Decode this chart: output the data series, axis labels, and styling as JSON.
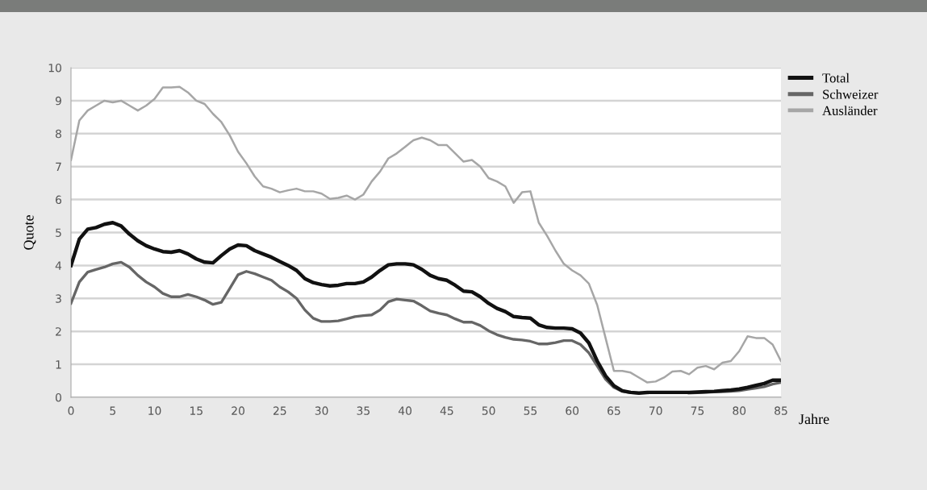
{
  "chart_data": {
    "type": "line",
    "xlabel": "Jahre",
    "ylabel": "Quote",
    "x": [
      0,
      1,
      2,
      3,
      4,
      5,
      6,
      7,
      8,
      9,
      10,
      11,
      12,
      13,
      14,
      15,
      16,
      17,
      18,
      19,
      20,
      21,
      22,
      23,
      24,
      25,
      26,
      27,
      28,
      29,
      30,
      31,
      32,
      33,
      34,
      35,
      36,
      37,
      38,
      39,
      40,
      41,
      42,
      43,
      44,
      45,
      46,
      47,
      48,
      49,
      50,
      51,
      52,
      53,
      54,
      55,
      56,
      57,
      58,
      59,
      60,
      61,
      62,
      63,
      64,
      65,
      66,
      67,
      68,
      69,
      70,
      71,
      72,
      73,
      74,
      75,
      76,
      77,
      78,
      79,
      80,
      81,
      82,
      83,
      84,
      85
    ],
    "series": [
      {
        "name": "Total",
        "color": "#111111",
        "values": [
          4.0,
          4.8,
          5.1,
          5.15,
          5.25,
          5.3,
          5.2,
          4.95,
          4.75,
          4.6,
          4.5,
          4.42,
          4.4,
          4.45,
          4.35,
          4.2,
          4.1,
          4.08,
          4.3,
          4.5,
          4.62,
          4.6,
          4.45,
          4.35,
          4.25,
          4.12,
          4.0,
          3.85,
          3.6,
          3.48,
          3.42,
          3.38,
          3.4,
          3.45,
          3.45,
          3.5,
          3.65,
          3.85,
          4.02,
          4.05,
          4.05,
          4.02,
          3.88,
          3.7,
          3.6,
          3.55,
          3.4,
          3.22,
          3.2,
          3.05,
          2.85,
          2.7,
          2.6,
          2.45,
          2.42,
          2.4,
          2.2,
          2.12,
          2.1,
          2.1,
          2.08,
          1.95,
          1.65,
          1.1,
          0.65,
          0.35,
          0.2,
          0.15,
          0.13,
          0.15,
          0.15,
          0.15,
          0.15,
          0.15,
          0.15,
          0.16,
          0.17,
          0.18,
          0.2,
          0.22,
          0.25,
          0.3,
          0.36,
          0.42,
          0.52,
          0.52
        ]
      },
      {
        "name": "Schweizer",
        "color": "#666666",
        "values": [
          2.85,
          3.5,
          3.8,
          3.88,
          3.95,
          4.05,
          4.1,
          3.95,
          3.7,
          3.5,
          3.35,
          3.15,
          3.05,
          3.05,
          3.12,
          3.05,
          2.95,
          2.82,
          2.88,
          3.3,
          3.72,
          3.82,
          3.75,
          3.65,
          3.55,
          3.35,
          3.2,
          3.0,
          2.65,
          2.4,
          2.3,
          2.3,
          2.32,
          2.38,
          2.45,
          2.48,
          2.5,
          2.65,
          2.9,
          2.98,
          2.95,
          2.92,
          2.78,
          2.62,
          2.55,
          2.5,
          2.38,
          2.28,
          2.28,
          2.18,
          2.02,
          1.9,
          1.82,
          1.76,
          1.74,
          1.7,
          1.62,
          1.62,
          1.66,
          1.72,
          1.72,
          1.6,
          1.35,
          0.95,
          0.55,
          0.3,
          0.18,
          0.14,
          0.13,
          0.13,
          null,
          null,
          null,
          null,
          0.13,
          0.14,
          0.15,
          0.16,
          0.17,
          0.18,
          0.2,
          0.24,
          0.28,
          0.32,
          0.4,
          0.45
        ]
      },
      {
        "name": "Ausländer",
        "color": "#a6a6a6",
        "values": [
          7.2,
          8.4,
          8.7,
          8.85,
          9.0,
          8.95,
          9.0,
          8.85,
          8.7,
          8.85,
          9.05,
          9.4,
          9.4,
          9.42,
          9.25,
          9.0,
          8.9,
          8.6,
          8.35,
          7.95,
          7.45,
          7.1,
          6.7,
          6.4,
          6.33,
          6.22,
          6.28,
          6.33,
          6.25,
          6.25,
          6.18,
          6.02,
          6.05,
          6.12,
          6.0,
          6.15,
          6.55,
          6.85,
          7.25,
          7.4,
          7.6,
          7.8,
          7.88,
          7.8,
          7.65,
          7.65,
          7.4,
          7.15,
          7.2,
          7.0,
          6.65,
          6.55,
          6.4,
          5.9,
          6.22,
          6.25,
          5.3,
          4.9,
          4.45,
          4.05,
          3.85,
          3.7,
          3.45,
          2.8,
          1.8,
          0.8,
          0.8,
          0.75,
          0.6,
          0.45,
          0.48,
          0.6,
          0.78,
          0.8,
          0.7,
          0.9,
          0.95,
          0.85,
          1.05,
          1.1,
          1.4,
          1.85,
          1.8,
          1.8,
          1.6,
          1.1
        ]
      }
    ],
    "xlim": [
      0,
      85
    ],
    "xticks": [
      0,
      5,
      10,
      15,
      20,
      25,
      30,
      35,
      40,
      45,
      50,
      55,
      60,
      65,
      70,
      75,
      80,
      85
    ],
    "ylim": [
      0,
      10
    ],
    "yticks": [
      0,
      1,
      2,
      3,
      4,
      5,
      6,
      7,
      8,
      9,
      10
    ],
    "grid": "y",
    "legend": "top right",
    "marker": "none",
    "line_style": "solid"
  }
}
